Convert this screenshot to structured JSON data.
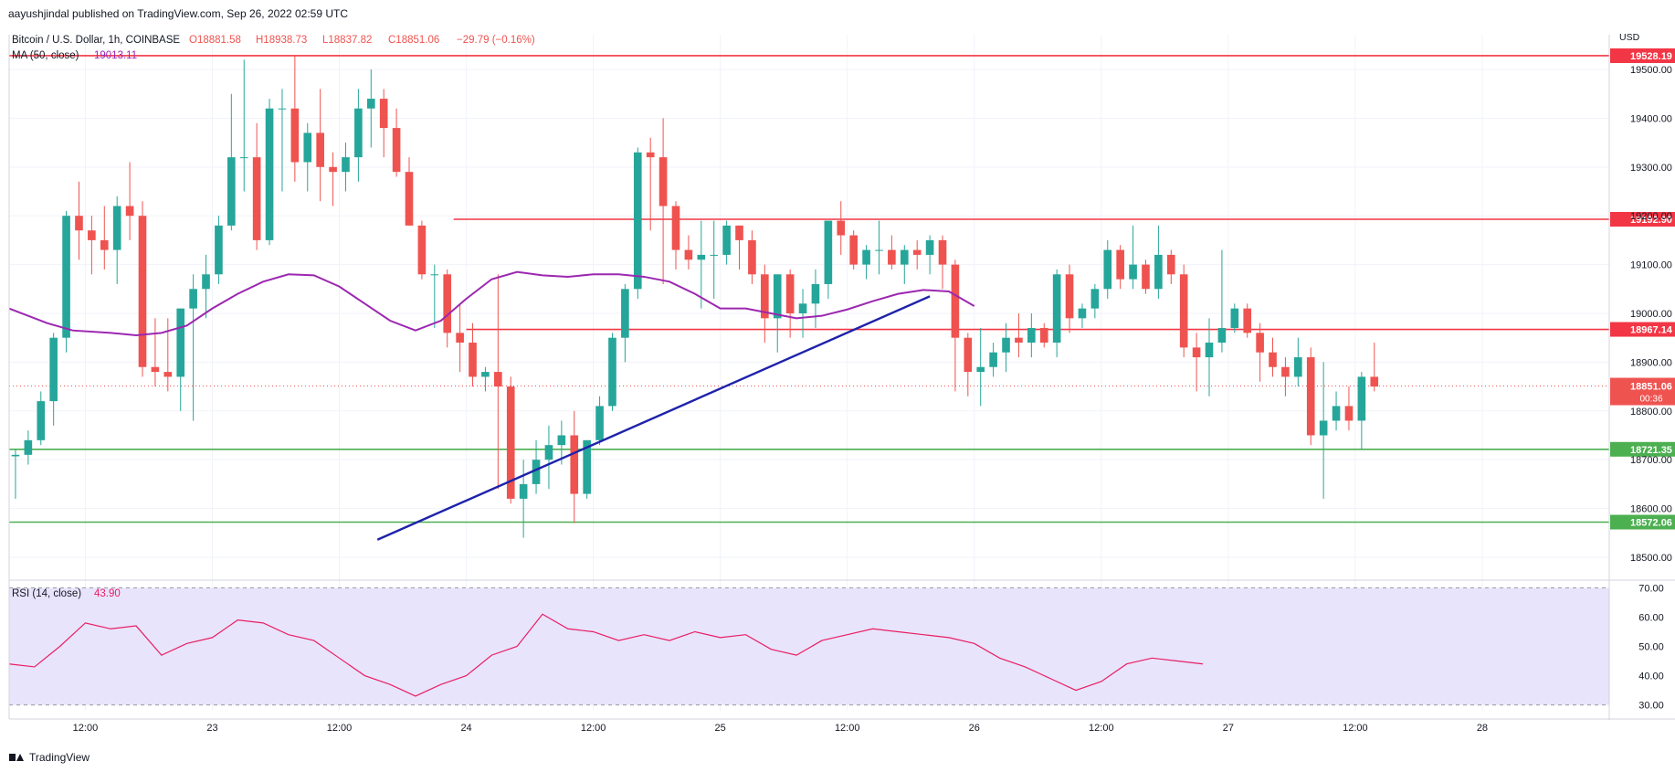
{
  "publisher_note": "aayushjindal published on TradingView.com, Sep 26, 2022 02:59 UTC",
  "brand": "TradingView",
  "chart_data": {
    "type": "candlestick",
    "symbol_line": {
      "name": "Bitcoin / U.S. Dollar, 1h, COINBASE",
      "open": "O18881.58",
      "high": "H18938.73",
      "low": "L18837.82",
      "close": "C18851.06",
      "change": "−29.79 (−0.16%)"
    },
    "ma_label": "MA (50, close)",
    "ma_value": "19013.11",
    "currency": "USD",
    "price_axis": {
      "range": [
        18455,
        19545
      ],
      "ticks": [
        "18500.00",
        "18600.00",
        "18700.00",
        "18800.00",
        "18900.00",
        "19000.00",
        "19100.00",
        "19200.00",
        "19300.00",
        "19400.00",
        "19500.00"
      ]
    },
    "time_axis": {
      "range_hours": [
        0,
        126
      ],
      "ticks": [
        {
          "label": "12:00",
          "h": 6
        },
        {
          "label": "23",
          "h": 16
        },
        {
          "label": "12:00",
          "h": 26
        },
        {
          "label": "24",
          "h": 36
        },
        {
          "label": "12:00",
          "h": 46
        },
        {
          "label": "25",
          "h": 56
        },
        {
          "label": "12:00",
          "h": 66
        },
        {
          "label": "26",
          "h": 76
        },
        {
          "label": "12:00",
          "h": 86
        },
        {
          "label": "27",
          "h": 96
        },
        {
          "label": "12:00",
          "h": 106
        },
        {
          "label": "28",
          "h": 116
        }
      ]
    },
    "candles": [
      [
        18707,
        18722,
        18620,
        18710
      ],
      [
        18710,
        18760,
        18690,
        18740
      ],
      [
        18740,
        18840,
        18730,
        18820
      ],
      [
        18820,
        18960,
        18770,
        18950
      ],
      [
        18950,
        19210,
        18920,
        19200
      ],
      [
        19200,
        19270,
        19110,
        19170
      ],
      [
        19170,
        19200,
        19080,
        19150
      ],
      [
        19150,
        19220,
        19090,
        19130
      ],
      [
        19130,
        19240,
        19060,
        19220
      ],
      [
        19220,
        19310,
        19150,
        19200
      ],
      [
        19200,
        19230,
        18870,
        18890
      ],
      [
        18890,
        18990,
        18850,
        18880
      ],
      [
        18880,
        18990,
        18840,
        18870
      ],
      [
        18870,
        19010,
        18800,
        19010
      ],
      [
        19010,
        19080,
        18780,
        19050
      ],
      [
        19050,
        19120,
        18990,
        19080
      ],
      [
        19080,
        19200,
        19060,
        19180
      ],
      [
        19180,
        19450,
        19170,
        19320
      ],
      [
        19320,
        19520,
        19250,
        19320
      ],
      [
        19320,
        19390,
        19130,
        19150
      ],
      [
        19150,
        19440,
        19140,
        19420
      ],
      [
        19420,
        19460,
        19250,
        19420
      ],
      [
        19420,
        19530,
        19270,
        19310
      ],
      [
        19310,
        19390,
        19250,
        19370
      ],
      [
        19370,
        19460,
        19230,
        19300
      ],
      [
        19300,
        19330,
        19220,
        19290
      ],
      [
        19290,
        19350,
        19250,
        19320
      ],
      [
        19320,
        19460,
        19270,
        19420
      ],
      [
        19420,
        19500,
        19340,
        19440
      ],
      [
        19440,
        19460,
        19320,
        19380
      ],
      [
        19380,
        19420,
        19280,
        19290
      ],
      [
        19290,
        19320,
        19180,
        19180
      ],
      [
        19180,
        19190,
        19070,
        19080
      ],
      [
        19080,
        19100,
        18970,
        19080
      ],
      [
        19080,
        19090,
        18930,
        18960
      ],
      [
        18960,
        19020,
        18880,
        18940
      ],
      [
        18940,
        18980,
        18850,
        18870
      ],
      [
        18870,
        18890,
        18840,
        18880
      ],
      [
        18880,
        19080,
        18640,
        18850
      ],
      [
        18850,
        18870,
        18610,
        18620
      ],
      [
        18620,
        18700,
        18540,
        18650
      ],
      [
        18650,
        18740,
        18630,
        18700
      ],
      [
        18700,
        18770,
        18640,
        18730
      ],
      [
        18730,
        18780,
        18690,
        18750
      ],
      [
        18750,
        18800,
        18570,
        18630
      ],
      [
        18630,
        18740,
        18620,
        18740
      ],
      [
        18740,
        18830,
        18730,
        18810
      ],
      [
        18810,
        18960,
        18800,
        18950
      ],
      [
        18950,
        19060,
        18900,
        19050
      ],
      [
        19050,
        19340,
        19030,
        19330
      ],
      [
        19330,
        19360,
        19170,
        19320
      ],
      [
        19320,
        19400,
        19060,
        19220
      ],
      [
        19220,
        19230,
        19090,
        19130
      ],
      [
        19130,
        19160,
        19090,
        19110
      ],
      [
        19110,
        19190,
        19010,
        19120
      ],
      [
        19120,
        19190,
        19030,
        19120
      ],
      [
        19120,
        19190,
        19100,
        19180
      ],
      [
        19180,
        19180,
        19090,
        19150
      ],
      [
        19150,
        19170,
        19060,
        19080
      ],
      [
        19080,
        19100,
        18940,
        18990
      ],
      [
        18990,
        19080,
        18920,
        19080
      ],
      [
        19080,
        19090,
        18950,
        19000
      ],
      [
        19000,
        19050,
        18950,
        19020
      ],
      [
        19020,
        19090,
        18970,
        19060
      ],
      [
        19060,
        19190,
        19030,
        19190
      ],
      [
        19190,
        19230,
        19120,
        19160
      ],
      [
        19160,
        19170,
        19090,
        19100
      ],
      [
        19100,
        19140,
        19070,
        19130
      ],
      [
        19130,
        19190,
        19080,
        19130
      ],
      [
        19130,
        19160,
        19090,
        19100
      ],
      [
        19100,
        19140,
        19060,
        19130
      ],
      [
        19130,
        19150,
        19090,
        19120
      ],
      [
        19120,
        19160,
        19080,
        19150
      ],
      [
        19150,
        19160,
        19050,
        19100
      ],
      [
        19100,
        19110,
        18840,
        18950
      ],
      [
        18950,
        18960,
        18830,
        18880
      ],
      [
        18880,
        18970,
        18810,
        18890
      ],
      [
        18890,
        18940,
        18870,
        18920
      ],
      [
        18920,
        18980,
        18880,
        18950
      ],
      [
        18950,
        19000,
        18910,
        18940
      ],
      [
        18940,
        19000,
        18910,
        18970
      ],
      [
        18970,
        18980,
        18930,
        18940
      ],
      [
        18940,
        19090,
        18910,
        19080
      ],
      [
        19080,
        19100,
        18960,
        18990
      ],
      [
        18990,
        19020,
        18970,
        19010
      ],
      [
        19010,
        19060,
        18990,
        19050
      ],
      [
        19050,
        19150,
        19030,
        19130
      ],
      [
        19130,
        19140,
        19050,
        19070
      ],
      [
        19070,
        19180,
        19050,
        19100
      ],
      [
        19100,
        19110,
        19040,
        19050
      ],
      [
        19050,
        19180,
        19030,
        19120
      ],
      [
        19120,
        19130,
        19060,
        19080
      ],
      [
        19080,
        19100,
        18910,
        18930
      ],
      [
        18930,
        18960,
        18840,
        18910
      ],
      [
        18910,
        18990,
        18830,
        18940
      ],
      [
        18940,
        19130,
        18920,
        18970
      ],
      [
        18970,
        19020,
        18960,
        19010
      ],
      [
        19010,
        19020,
        18950,
        18960
      ],
      [
        18960,
        18980,
        18860,
        18920
      ],
      [
        18920,
        18950,
        18870,
        18890
      ],
      [
        18890,
        18910,
        18830,
        18870
      ],
      [
        18870,
        18950,
        18850,
        18910
      ],
      [
        18910,
        18930,
        18730,
        18750
      ],
      [
        18750,
        18900,
        18620,
        18780
      ],
      [
        18780,
        18840,
        18760,
        18810
      ],
      [
        18810,
        18850,
        18760,
        18780
      ],
      [
        18780,
        18880,
        18720,
        18870
      ],
      [
        18870,
        18940,
        18840,
        18850
      ]
    ],
    "ma_50": [
      [
        0,
        19010
      ],
      [
        3,
        18980
      ],
      [
        5,
        18965
      ],
      [
        8,
        18960
      ],
      [
        10,
        18955
      ],
      [
        12,
        18960
      ],
      [
        14,
        18975
      ],
      [
        16,
        19010
      ],
      [
        18,
        19040
      ],
      [
        20,
        19065
      ],
      [
        22,
        19080
      ],
      [
        24,
        19078
      ],
      [
        26,
        19055
      ],
      [
        28,
        19020
      ],
      [
        30,
        18985
      ],
      [
        32,
        18965
      ],
      [
        34,
        18985
      ],
      [
        36,
        19030
      ],
      [
        38,
        19070
      ],
      [
        40,
        19085
      ],
      [
        42,
        19078
      ],
      [
        44,
        19075
      ],
      [
        46,
        19080
      ],
      [
        48,
        19080
      ],
      [
        50,
        19075
      ],
      [
        52,
        19065
      ],
      [
        54,
        19040
      ],
      [
        56,
        19010
      ],
      [
        58,
        19010
      ],
      [
        60,
        19000
      ],
      [
        62,
        18990
      ],
      [
        64,
        18995
      ],
      [
        66,
        19008
      ],
      [
        68,
        19025
      ],
      [
        70,
        19040
      ],
      [
        72,
        19048
      ],
      [
        74,
        19045
      ],
      [
        75,
        19030
      ],
      [
        76,
        19015
      ]
    ],
    "rsi": {
      "label": "RSI (14, close)",
      "value": "43.90",
      "range": [
        28,
        72
      ],
      "band": [
        30,
        70
      ],
      "ticks": [
        "30.00",
        "40.00",
        "50.00",
        "60.00",
        "70.00"
      ],
      "points": [
        [
          0,
          44
        ],
        [
          2,
          43
        ],
        [
          4,
          50
        ],
        [
          6,
          58
        ],
        [
          8,
          56
        ],
        [
          10,
          57
        ],
        [
          12,
          47
        ],
        [
          14,
          51
        ],
        [
          16,
          53
        ],
        [
          18,
          59
        ],
        [
          20,
          58
        ],
        [
          22,
          54
        ],
        [
          24,
          52
        ],
        [
          26,
          46
        ],
        [
          28,
          40
        ],
        [
          30,
          37
        ],
        [
          32,
          33
        ],
        [
          34,
          37
        ],
        [
          36,
          40
        ],
        [
          38,
          47
        ],
        [
          40,
          50
        ],
        [
          42,
          61
        ],
        [
          44,
          56
        ],
        [
          46,
          55
        ],
        [
          48,
          52
        ],
        [
          50,
          54
        ],
        [
          52,
          52
        ],
        [
          54,
          55
        ],
        [
          56,
          53
        ],
        [
          58,
          54
        ],
        [
          60,
          49
        ],
        [
          62,
          47
        ],
        [
          64,
          52
        ],
        [
          66,
          54
        ],
        [
          68,
          56
        ],
        [
          70,
          55
        ],
        [
          72,
          54
        ],
        [
          74,
          53
        ],
        [
          76,
          51
        ],
        [
          78,
          46
        ],
        [
          80,
          43
        ],
        [
          82,
          39
        ],
        [
          84,
          35
        ],
        [
          86,
          38
        ],
        [
          88,
          44
        ],
        [
          90,
          46
        ],
        [
          92,
          45
        ],
        [
          94,
          44
        ]
      ]
    },
    "horizontal_lines": [
      {
        "price": 19528.19,
        "color": "#f23645",
        "label": "19528.19",
        "start_h": 0
      },
      {
        "price": 19192.9,
        "color": "#f23645",
        "label": "19192.90",
        "start_h": 35
      },
      {
        "price": 18967.14,
        "color": "#f23645",
        "label": "18967.14",
        "start_h": 36
      },
      {
        "price": 18721.35,
        "color": "#4caf50",
        "label": "18721.35",
        "start_h": 0
      },
      {
        "price": 18572.06,
        "color": "#4caf50",
        "label": "18572.06",
        "start_h": 0
      }
    ],
    "current_price": {
      "label": "18851.06",
      "countdown": "00:36",
      "price": 18851.06
    },
    "trend_line": {
      "from": [
        29,
        18536
      ],
      "to": [
        72.5,
        19035
      ],
      "color": "#1e22aa"
    },
    "colors": {
      "up": "#26a69a",
      "down": "#ef5350",
      "ma": "#9c27b0",
      "rsi": "#e91e63",
      "rsi_band": "#e8e4fc"
    }
  }
}
